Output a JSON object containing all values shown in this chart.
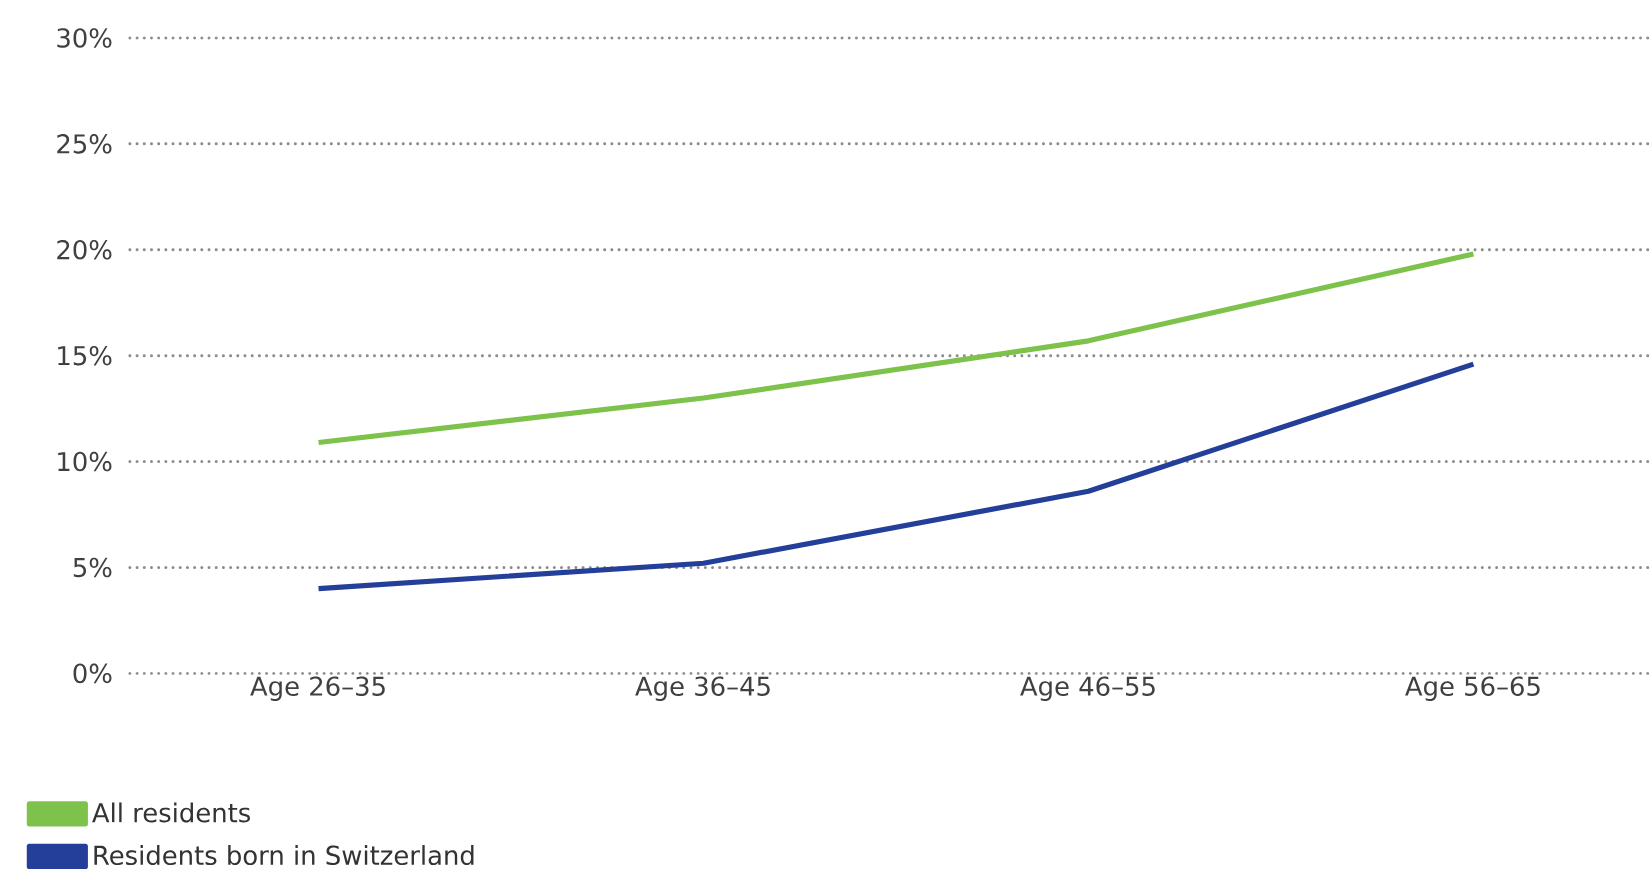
{
  "chart_data": {
    "type": "line",
    "categories": [
      "Age 26–35",
      "Age 36–45",
      "Age 46–55",
      "Age 56–65"
    ],
    "series": [
      {
        "name": "All residents",
        "color": "#7dc24b",
        "values": [
          10.9,
          13.0,
          15.7,
          19.8
        ]
      },
      {
        "name": "Residents born in Switzerland",
        "color": "#233f99",
        "values": [
          4.0,
          5.2,
          8.6,
          14.6
        ]
      }
    ],
    "ylim": [
      0,
      30
    ],
    "yticks": [
      {
        "value": 0,
        "label": "0%"
      },
      {
        "value": 5,
        "label": "5%"
      },
      {
        "value": 10,
        "label": "10%"
      },
      {
        "value": 15,
        "label": "15%"
      },
      {
        "value": 20,
        "label": "20%"
      },
      {
        "value": 25,
        "label": "25%"
      },
      {
        "value": 30,
        "label": "30%"
      }
    ],
    "grid": "y",
    "legend": "bottom left",
    "marker": "none",
    "line_style": "solid"
  }
}
